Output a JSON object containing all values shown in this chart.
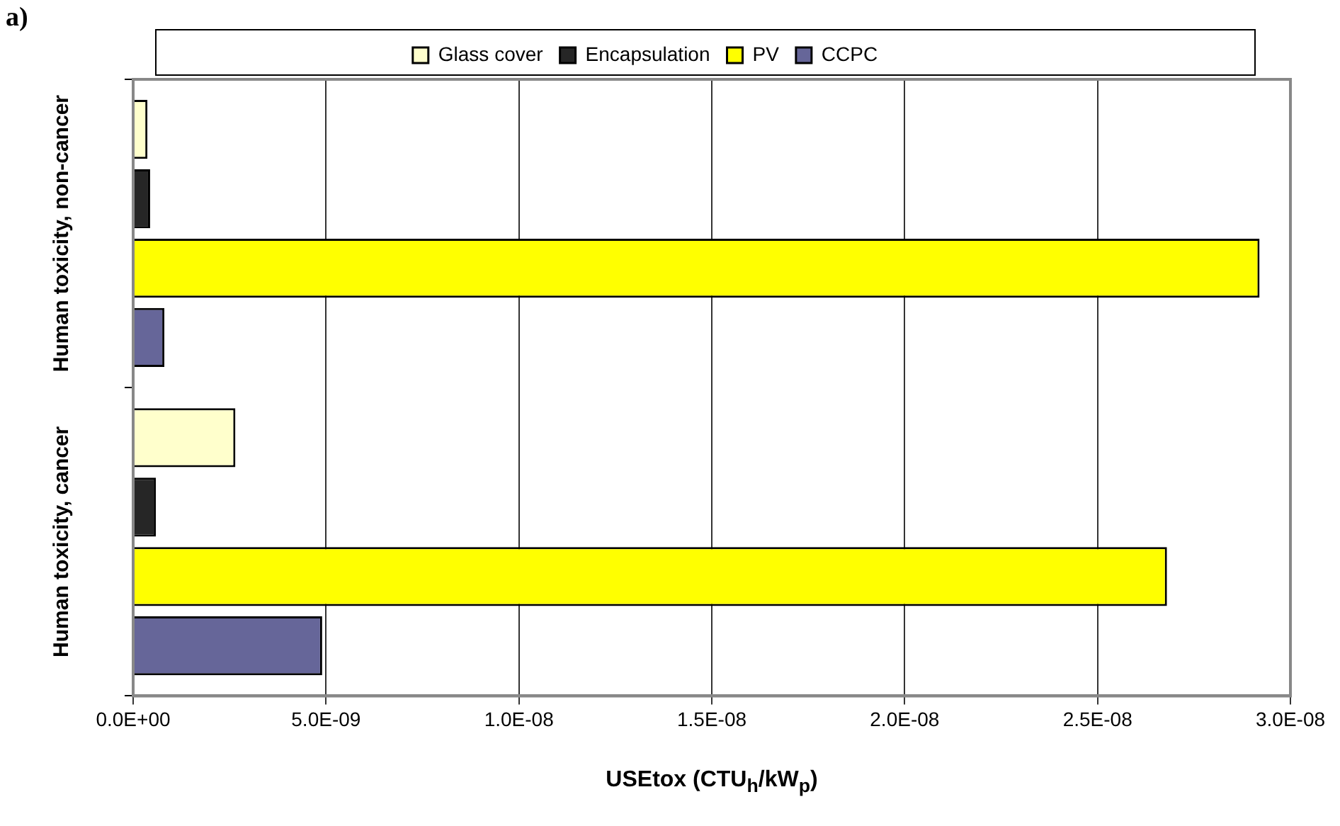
{
  "chart_data": {
    "type": "bar",
    "orientation": "horizontal",
    "xlabel": "USEtox (CTU$_{h}$/kW$_{p}$)",
    "annotations": [
      "a)"
    ],
    "categories": [
      "Human toxicity, non-cancer",
      "Human toxicity, cancer"
    ],
    "series": [
      {
        "name": "Glass cover",
        "color": "#ffffcc",
        "values": [
          3.7e-10,
          2.65e-09
        ]
      },
      {
        "name": "Encapsulation",
        "color": "#262626",
        "values": [
          4.4e-10,
          5.9e-10
        ]
      },
      {
        "name": "PV",
        "color": "#ffff00",
        "values": [
          2.92e-08,
          2.68e-08
        ]
      },
      {
        "name": "CCPC",
        "color": "#666699",
        "values": [
          8.1e-10,
          4.9e-09
        ]
      }
    ],
    "xlim": [
      0,
      3e-08
    ],
    "xticks": [
      {
        "value": 0,
        "label": "0.0E+00"
      },
      {
        "value": 5e-09,
        "label": "5.0E-09"
      },
      {
        "value": 1e-08,
        "label": "1.0E-08"
      },
      {
        "value": 1.5e-08,
        "label": "1.5E-08"
      },
      {
        "value": 2e-08,
        "label": "2.0E-08"
      },
      {
        "value": 2.5e-08,
        "label": "2.5E-08"
      },
      {
        "value": 3e-08,
        "label": "3.0E-08"
      }
    ],
    "grid": "x",
    "legend": "top"
  }
}
